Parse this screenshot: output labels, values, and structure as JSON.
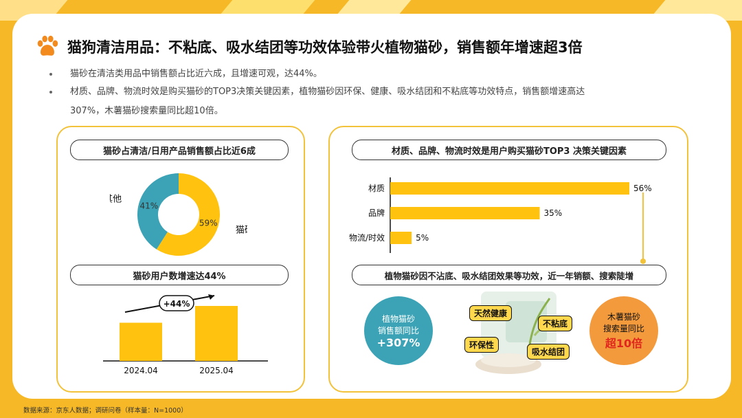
{
  "title": "猫狗清洁用品：不粘底、吸水结团等功效体验带火植物猫砂，销售额年增速超3倍",
  "bullets": [
    "猫砂在清洁类用品中销售额占比近六成，且增速可观，达44%。",
    "材质、品牌、物流时效是购买猫砂的TOP3决策关键因素，植物猫砂因环保、健康、吸水结团和不粘底等功效特点，销售额增速高达",
    "307%，木薯猫砂搜索量同比超10倍。"
  ],
  "colors": {
    "accent": "#FFC20E",
    "teal": "#3BA3B5",
    "orange": "#F39A3C",
    "red": "#E0261D",
    "border": "#F2C23A"
  },
  "left_card": {
    "pie_title": "猫砂占清洁/日用产品销售额占比近6成",
    "bar_title": "猫砂用户数增速达44%",
    "growth_label": "+44%"
  },
  "right_card": {
    "bar_title": "材质、品牌、物流时效是用户购买猫砂TOP3 决策关键因素",
    "plant_title": "植物猫砂因不沾底、吸水结团效果等功效，近一年销额、搜索陡增",
    "plant_circle": {
      "line1": "植物猫砂",
      "line2": "销售额同比",
      "value": "+307%"
    },
    "cassava_circle": {
      "line1": "木薯猫砂",
      "line2": "搜索量同比",
      "value": "超10倍"
    },
    "tags": [
      "天然健康",
      "不粘底",
      "环保性",
      "吸水结团"
    ]
  },
  "chart_data": [
    {
      "type": "pie",
      "title": "猫砂占清洁/日用产品销售额占比近6成",
      "categories": [
        "猫砂",
        "其他"
      ],
      "values": [
        59,
        41
      ],
      "value_labels": [
        "59%",
        "41%"
      ],
      "colors": [
        "#FFC20E",
        "#3BA3B5"
      ]
    },
    {
      "type": "bar",
      "title": "猫砂用户数增速达44%",
      "categories": [
        "2024.04",
        "2025.04"
      ],
      "values": [
        100,
        144
      ],
      "annotation": "+44%"
    },
    {
      "type": "bar",
      "orientation": "horizontal",
      "title": "材质、品牌、物流时效是用户购买猫砂TOP3 决策关键因素",
      "categories": [
        "材质",
        "品牌",
        "物流/时效"
      ],
      "values": [
        56,
        35,
        5
      ],
      "value_labels": [
        "56%",
        "35%",
        "5%"
      ],
      "xlim": [
        0,
        56
      ]
    }
  ],
  "footer": "数据来源：京东人数据；调研问卷（样本量：N=1000）"
}
